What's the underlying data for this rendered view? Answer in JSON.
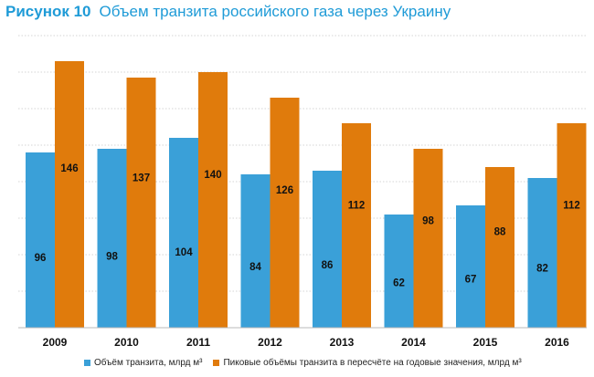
{
  "title": {
    "label": "Рисунок 10",
    "text": "Объем транзита российского газа через Украину"
  },
  "chart_data": {
    "type": "bar",
    "categories": [
      "2009",
      "2010",
      "2011",
      "2012",
      "2013",
      "2014",
      "2015",
      "2016"
    ],
    "series": [
      {
        "name": "Объём транзита, млрд м³",
        "color": "#3aa0d8",
        "values": [
          96,
          98,
          104,
          84,
          86,
          62,
          67,
          82
        ]
      },
      {
        "name": "Пиковые объёмы транзита в пересчёте на годовые значения, млрд м³",
        "color": "#e07b0c",
        "values": [
          146,
          137,
          140,
          126,
          112,
          98,
          88,
          112
        ]
      }
    ],
    "ylim": [
      0,
      160
    ],
    "grid": true,
    "legend_position": "bottom"
  }
}
